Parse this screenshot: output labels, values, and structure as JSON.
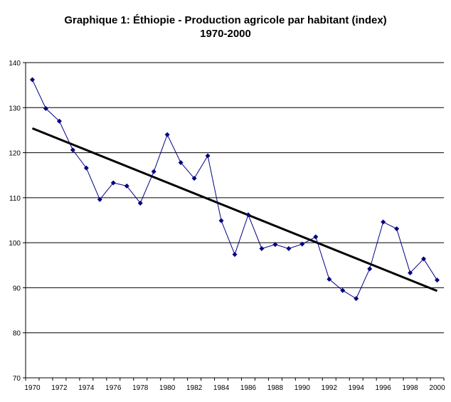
{
  "chart_data": {
    "type": "line",
    "title": "Graphique 1: Éthiopie - Production agricole par habitant (index)",
    "subtitle": "1970-2000",
    "xlabel": "",
    "ylabel": "",
    "ylim": [
      70,
      140
    ],
    "yticks": [
      70,
      80,
      90,
      100,
      110,
      120,
      130,
      140
    ],
    "grid": true,
    "x": [
      1970,
      1971,
      1972,
      1973,
      1974,
      1975,
      1976,
      1977,
      1978,
      1979,
      1980,
      1981,
      1982,
      1983,
      1984,
      1985,
      1986,
      1987,
      1988,
      1989,
      1990,
      1991,
      1992,
      1993,
      1994,
      1995,
      1996,
      1997,
      1998,
      1999,
      2000
    ],
    "xtick_labels": [
      "1970",
      "1972",
      "1974",
      "1976",
      "1978",
      "1980",
      "1982",
      "1984",
      "1986",
      "1988",
      "1990",
      "1992",
      "1994",
      "1996",
      "1998",
      "2000"
    ],
    "series": [
      {
        "values": [
          136.2,
          129.8,
          127.0,
          120.6,
          116.6,
          109.6,
          113.3,
          112.6,
          108.8,
          115.8,
          124.0,
          117.8,
          114.3,
          119.3,
          104.9,
          97.4,
          106.2,
          98.7,
          99.6,
          98.7,
          99.7,
          101.3,
          91.9,
          89.4,
          87.6,
          94.2,
          104.6,
          103.1,
          93.3,
          96.4,
          91.7
        ],
        "color": "#000080",
        "marker": "diamond"
      }
    ],
    "trendline": {
      "start": [
        1970,
        125.4
      ],
      "end": [
        2000,
        89.3
      ],
      "color": "#000000"
    }
  }
}
